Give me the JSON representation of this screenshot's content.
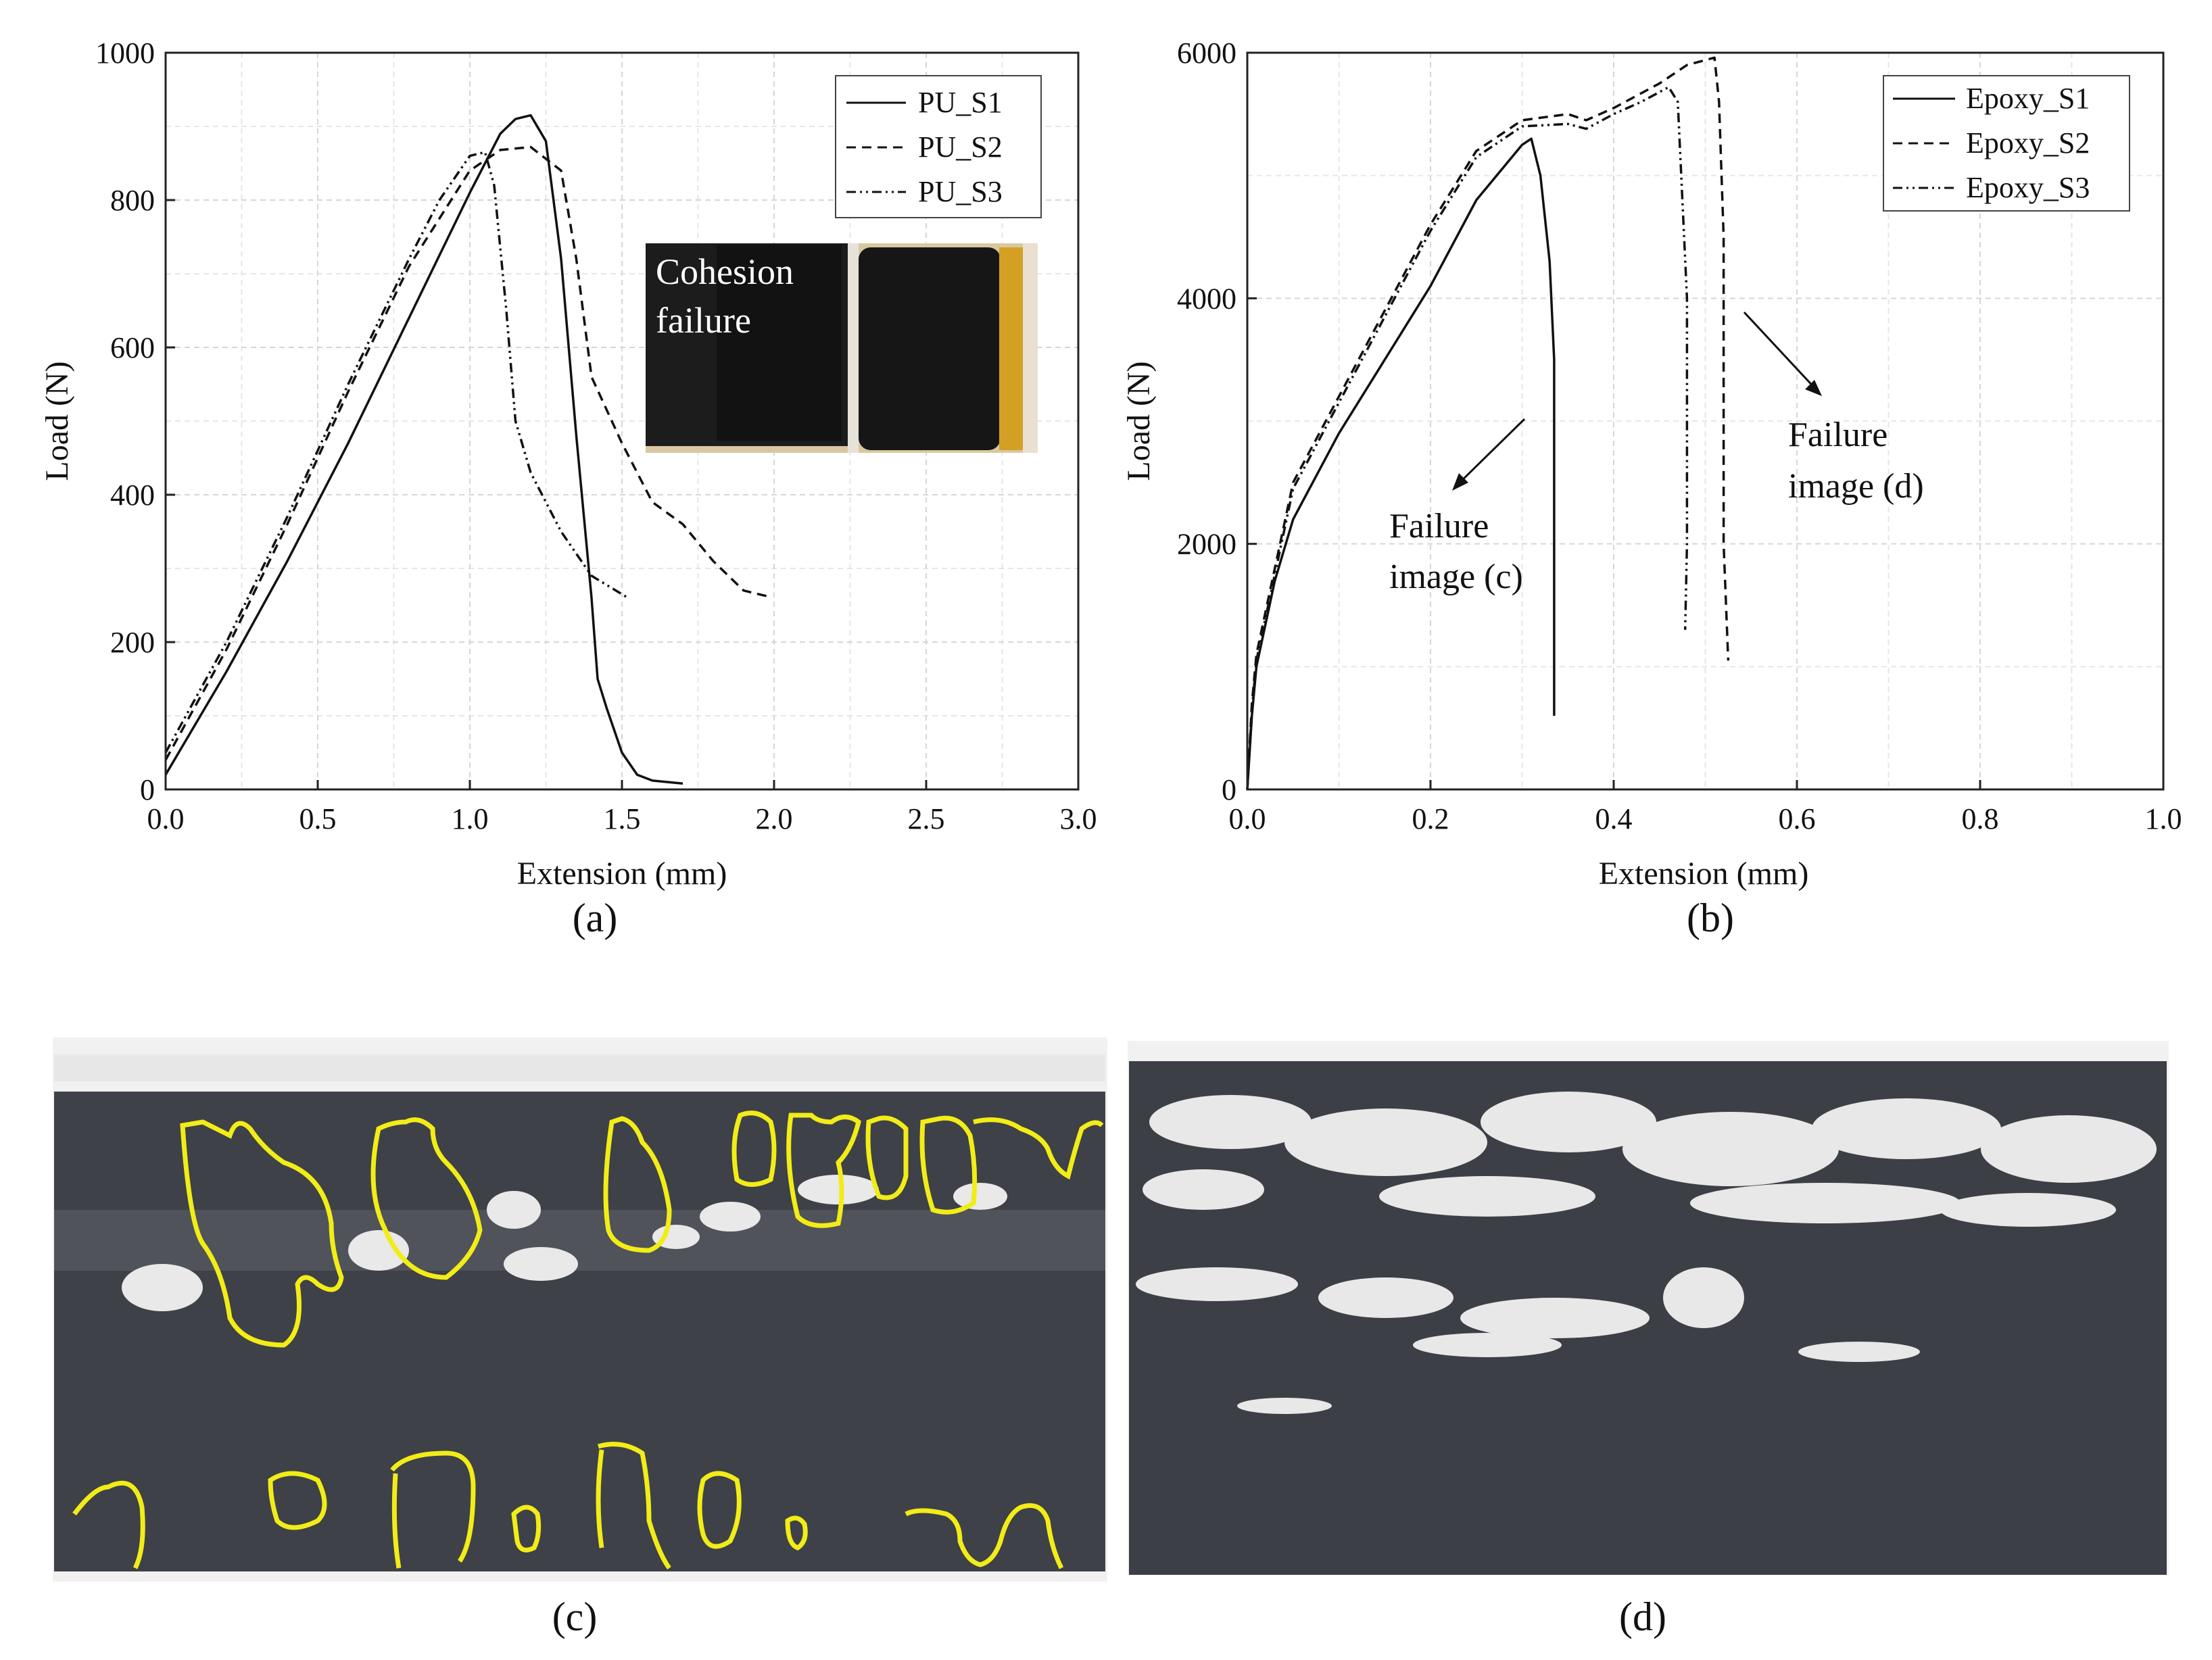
{
  "chart_data": [
    {
      "type": "line",
      "panel_label": "(a)",
      "xlabel": "Extension (mm)",
      "ylabel": "Load (N)",
      "xlim": [
        0,
        3.0
      ],
      "ylim": [
        0,
        1000
      ],
      "xticks": [
        "0.0",
        "0.5",
        "1.0",
        "1.5",
        "2.0",
        "2.5",
        "3.0"
      ],
      "yticks": [
        "0",
        "200",
        "400",
        "600",
        "800",
        "1000"
      ],
      "grid": true,
      "legend_position": "top-right",
      "series": [
        {
          "name": "PU_S1",
          "style": "solid",
          "x": [
            0.0,
            0.2,
            0.4,
            0.6,
            0.8,
            1.0,
            1.1,
            1.15,
            1.2,
            1.25,
            1.3,
            1.35,
            1.4,
            1.42,
            1.45,
            1.5,
            1.55,
            1.6,
            1.7
          ],
          "y": [
            20,
            160,
            310,
            470,
            640,
            810,
            890,
            910,
            915,
            880,
            720,
            480,
            260,
            150,
            110,
            50,
            20,
            12,
            8
          ]
        },
        {
          "name": "PU_S2",
          "style": "dashed",
          "x": [
            0.0,
            0.2,
            0.4,
            0.6,
            0.8,
            1.0,
            1.1,
            1.2,
            1.3,
            1.35,
            1.4,
            1.5,
            1.6,
            1.7,
            1.8,
            1.9,
            1.98
          ],
          "y": [
            40,
            190,
            360,
            540,
            710,
            840,
            868,
            872,
            840,
            720,
            560,
            470,
            390,
            360,
            310,
            270,
            262
          ]
        },
        {
          "name": "PU_S3",
          "style": "dashdot",
          "x": [
            0.0,
            0.2,
            0.4,
            0.6,
            0.8,
            0.9,
            1.0,
            1.05,
            1.08,
            1.12,
            1.15,
            1.2,
            1.3,
            1.4,
            1.52
          ],
          "y": [
            50,
            200,
            370,
            550,
            720,
            800,
            860,
            865,
            820,
            650,
            500,
            430,
            350,
            290,
            260
          ]
        }
      ],
      "inset": {
        "label_line1": "Cohesion",
        "label_line2": "failure"
      }
    },
    {
      "type": "line",
      "panel_label": "(b)",
      "xlabel": "Extension (mm)",
      "ylabel": "Load (N)",
      "xlim": [
        0,
        1.0
      ],
      "ylim": [
        0,
        6000
      ],
      "xticks": [
        "0.0",
        "0.2",
        "0.4",
        "0.6",
        "0.8",
        "1.0"
      ],
      "yticks": [
        "0",
        "2000",
        "4000",
        "6000"
      ],
      "grid": true,
      "legend_position": "top-right",
      "series": [
        {
          "name": "Epoxy_S1",
          "style": "solid",
          "x": [
            0.0,
            0.005,
            0.01,
            0.03,
            0.05,
            0.1,
            0.15,
            0.2,
            0.25,
            0.3,
            0.31,
            0.32,
            0.33,
            0.335,
            0.335,
            0.335
          ],
          "y": [
            0,
            600,
            1000,
            1700,
            2200,
            2900,
            3500,
            4100,
            4800,
            5250,
            5300,
            5000,
            4300,
            3500,
            1500,
            600
          ]
        },
        {
          "name": "Epoxy_S2",
          "style": "dashed",
          "x": [
            0.0,
            0.005,
            0.01,
            0.03,
            0.05,
            0.1,
            0.15,
            0.2,
            0.25,
            0.3,
            0.35,
            0.37,
            0.4,
            0.45,
            0.48,
            0.51,
            0.515,
            0.52,
            0.52,
            0.525
          ],
          "y": [
            0,
            700,
            1100,
            1800,
            2500,
            3200,
            3900,
            4600,
            5200,
            5450,
            5500,
            5450,
            5550,
            5750,
            5900,
            5960,
            5600,
            4500,
            2000,
            1050
          ]
        },
        {
          "name": "Epoxy_S3",
          "style": "dashdot",
          "x": [
            0.0,
            0.005,
            0.01,
            0.03,
            0.05,
            0.1,
            0.15,
            0.2,
            0.25,
            0.3,
            0.35,
            0.37,
            0.4,
            0.43,
            0.46,
            0.47,
            0.475,
            0.48,
            0.48,
            0.478
          ],
          "y": [
            0,
            650,
            1050,
            1750,
            2450,
            3150,
            3850,
            4550,
            5150,
            5400,
            5420,
            5380,
            5500,
            5600,
            5720,
            5600,
            4800,
            4000,
            2000,
            1300
          ]
        }
      ],
      "annotations": [
        {
          "line1": "Failure",
          "line2": "image (c)"
        },
        {
          "line1": "Failure",
          "line2": "image (d)"
        }
      ]
    }
  ],
  "photos": [
    {
      "panel_label": "(c)"
    },
    {
      "panel_label": "(d)"
    }
  ]
}
